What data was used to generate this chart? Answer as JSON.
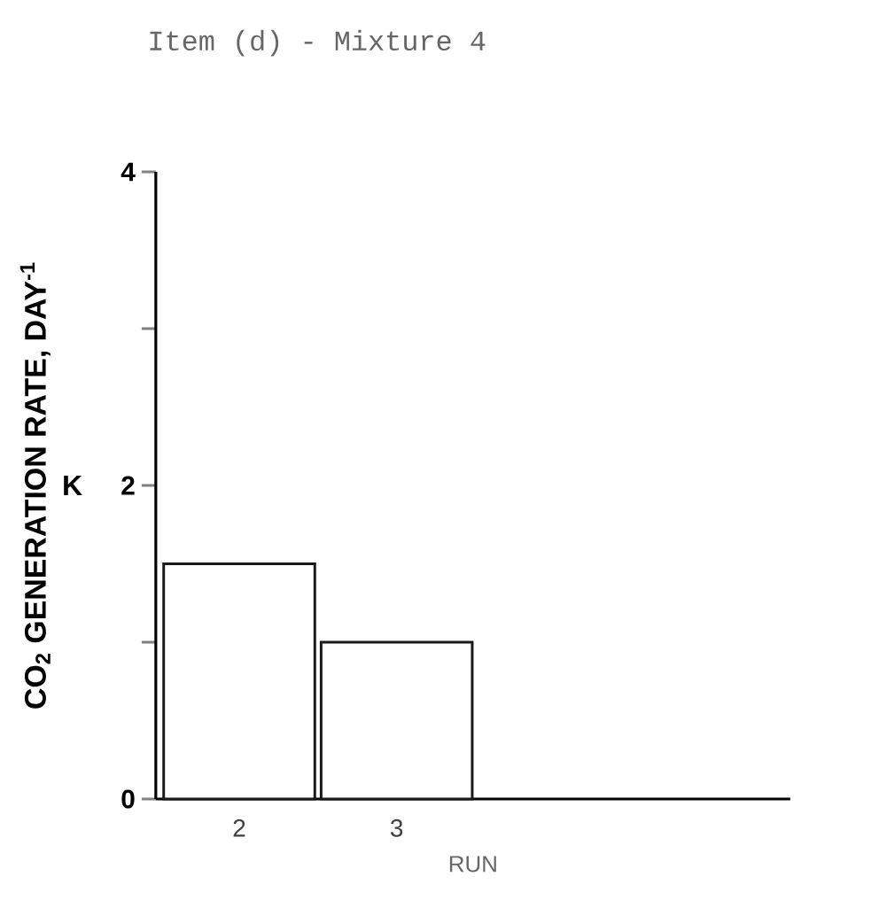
{
  "chart_data": {
    "type": "bar",
    "title": "Item (d) - Mixture 4",
    "xlabel": "RUN",
    "ylabel": "CO$_{2}$ GENERATION RATE, DAY$^{-1}$",
    "annotations": [
      "K"
    ],
    "categories": [
      "2",
      "3",
      null,
      null
    ],
    "values": [
      1.5,
      1.0,
      null,
      null
    ],
    "color": "#1a1a1a",
    "ylim": [
      0,
      4
    ],
    "yticks": [
      0,
      {
        "value": 1,
        "label": null
      },
      2,
      {
        "value": 3,
        "label": null
      },
      4
    ]
  }
}
